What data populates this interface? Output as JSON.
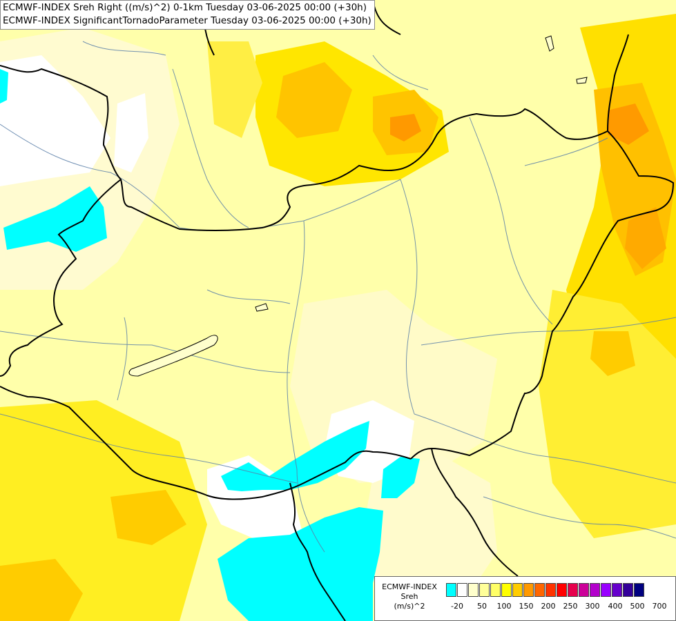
{
  "titles": {
    "line1": "ECMWF-INDEX Sreh Right ((m/s)^2) 0-1km Tuesday 03-06-2025 00:00 (+30h)",
    "line2": "ECMWF-INDEX SignificantTornadoParameter Tuesday 03-06-2025 00:00 (+30h)"
  },
  "legend": {
    "source": "ECMWF-INDEX",
    "parameter": "Sreh",
    "unit": "(m/s)^2",
    "colors": [
      "#00ffff",
      "#ffffff",
      "#ffffcc",
      "#ffff99",
      "#ffff66",
      "#ffff00",
      "#ffcc00",
      "#ff9900",
      "#ff6600",
      "#ff3300",
      "#ff0000",
      "#e6004c",
      "#cc0099",
      "#b300cc",
      "#9900ff",
      "#6600cc",
      "#330099",
      "#000080"
    ],
    "ticks": [
      "-20",
      "50",
      "100",
      "150",
      "200",
      "250",
      "300",
      "400",
      "500",
      "700"
    ]
  },
  "palette": {
    "cyan": "#00ffff",
    "white": "#ffffff",
    "pale": "#ffffcc",
    "light_yellow": "#ffff99",
    "yellow": "#ffff33",
    "gold": "#ffdd00",
    "orange": "#ffaa00",
    "dark_orange": "#ff8800"
  }
}
